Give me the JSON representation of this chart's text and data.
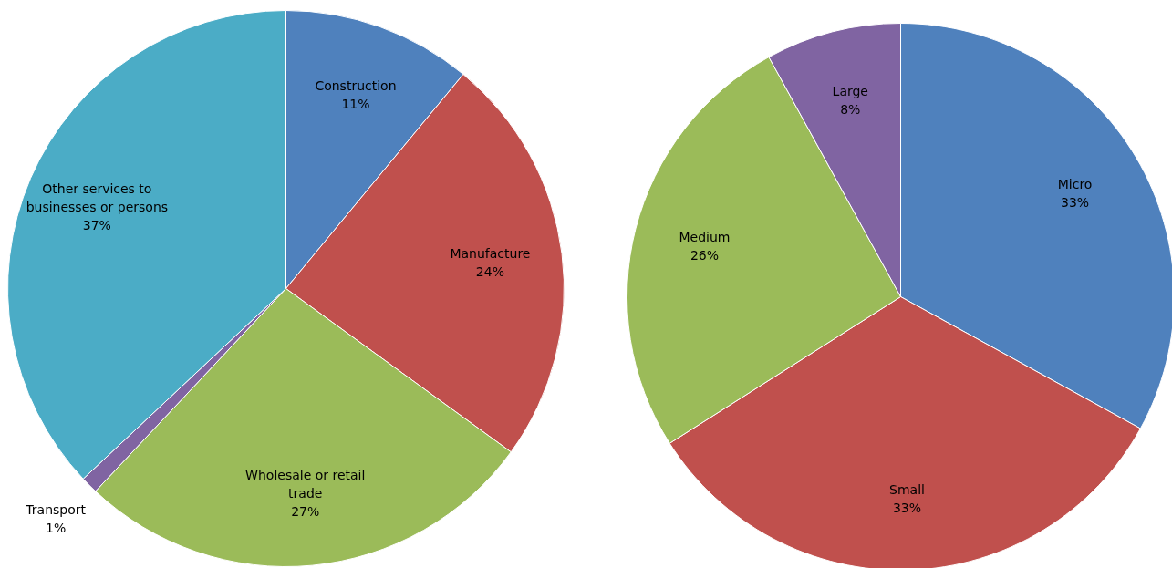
{
  "chart_data": [
    {
      "type": "pie",
      "categories": [
        "Construction",
        "Manufacture",
        "Wholesale or retail trade",
        "Transport",
        "Other services to businesses or persons"
      ],
      "values": [
        11,
        24,
        27,
        1,
        37
      ],
      "colors": [
        "#4f81bd",
        "#c0504d",
        "#9bbb59",
        "#8064a2",
        "#4bacc6"
      ],
      "value_labels": [
        "11%",
        "24%",
        "27%",
        "1%",
        "37%"
      ]
    },
    {
      "type": "pie",
      "categories": [
        "Micro",
        "Small",
        "Medium",
        "Large"
      ],
      "values": [
        33,
        33,
        26,
        8
      ],
      "colors": [
        "#4f81bd",
        "#c0504d",
        "#9bbb59",
        "#8064a2"
      ],
      "value_labels": [
        "33%",
        "33%",
        "26%",
        "8%"
      ]
    }
  ]
}
